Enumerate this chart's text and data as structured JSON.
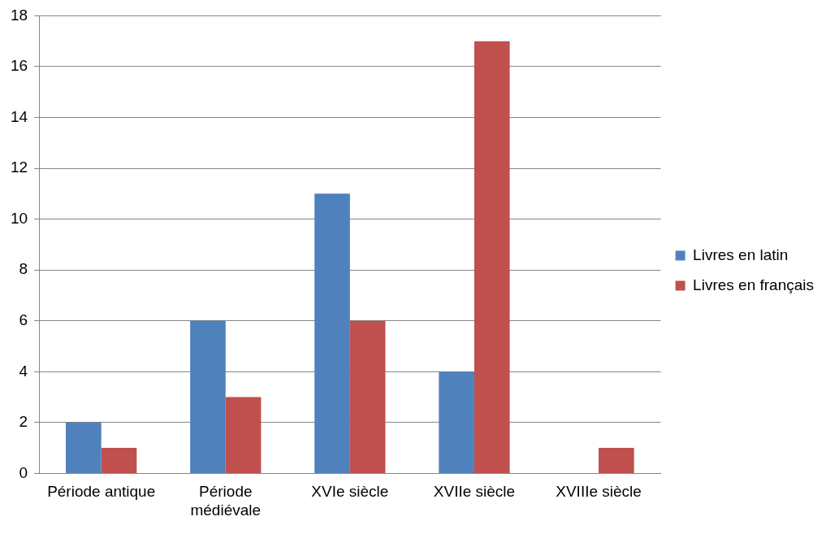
{
  "chart_data": {
    "type": "bar",
    "categories": [
      "Période antique",
      "Période médiévale",
      "XVIe siècle",
      "XVIIe siècle",
      "XVIIIe siècle"
    ],
    "series": [
      {
        "name": "Livres en latin",
        "color": "#4f81bd",
        "values": [
          2,
          6,
          11,
          4,
          0
        ]
      },
      {
        "name": "Livres en français",
        "color": "#c0504d",
        "values": [
          1,
          3,
          6,
          17,
          1
        ]
      }
    ],
    "ylim": [
      0,
      18
    ],
    "yticks": [
      0,
      2,
      4,
      6,
      8,
      10,
      12,
      14,
      16,
      18
    ],
    "grid": "y",
    "legend": "right"
  }
}
